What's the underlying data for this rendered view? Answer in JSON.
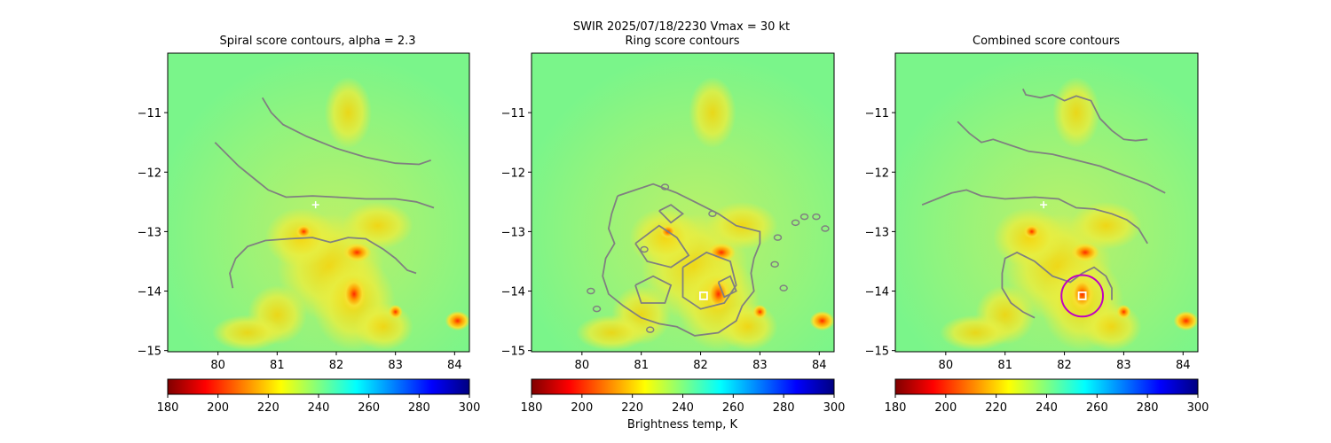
{
  "figure": {
    "suptitle": "SWIR  2025/07/18/2230    Vmax = 30 kt",
    "colorbar_label": "Brightness temp, K"
  },
  "chart_data": [
    {
      "type": "heatmap",
      "title": "Spiral score contours, alpha =  2.3",
      "xlim": [
        79.15,
        84.25
      ],
      "ylim": [
        -15.02,
        -10.0
      ],
      "xticks": [
        80,
        81,
        82,
        83,
        84
      ],
      "yticks": [
        -11,
        -12,
        -13,
        -14,
        -15
      ],
      "colorbar": {
        "cmap": "jet_r",
        "range": [
          180,
          300
        ],
        "ticks": [
          180,
          200,
          220,
          240,
          260,
          280,
          300
        ]
      },
      "markers": [
        {
          "kind": "plus",
          "color": "#ffffff",
          "x": 81.65,
          "y": -12.55
        }
      ],
      "contours": [
        [
          [
            80.75,
            -10.75
          ],
          [
            80.9,
            -11.0
          ],
          [
            81.1,
            -11.2
          ],
          [
            81.5,
            -11.4
          ],
          [
            82.0,
            -11.6
          ],
          [
            82.5,
            -11.75
          ],
          [
            83.0,
            -11.85
          ],
          [
            83.4,
            -11.87
          ],
          [
            83.6,
            -11.8
          ]
        ],
        [
          [
            79.95,
            -11.5
          ],
          [
            80.1,
            -11.65
          ],
          [
            80.35,
            -11.9
          ],
          [
            80.6,
            -12.1
          ],
          [
            80.85,
            -12.3
          ],
          [
            81.15,
            -12.42
          ],
          [
            81.6,
            -12.4
          ],
          [
            82.0,
            -12.42
          ],
          [
            82.5,
            -12.45
          ],
          [
            83.0,
            -12.45
          ],
          [
            83.35,
            -12.5
          ],
          [
            83.65,
            -12.6
          ]
        ],
        [
          [
            80.25,
            -13.95
          ],
          [
            80.2,
            -13.7
          ],
          [
            80.3,
            -13.45
          ],
          [
            80.5,
            -13.25
          ],
          [
            80.8,
            -13.15
          ],
          [
            81.2,
            -13.12
          ],
          [
            81.6,
            -13.1
          ],
          [
            81.9,
            -13.18
          ],
          [
            82.2,
            -13.1
          ],
          [
            82.5,
            -13.12
          ],
          [
            82.8,
            -13.3
          ],
          [
            83.0,
            -13.45
          ],
          [
            83.2,
            -13.65
          ],
          [
            83.35,
            -13.7
          ]
        ]
      ]
    },
    {
      "type": "heatmap",
      "title": "Ring score contours",
      "xlim": [
        79.15,
        84.25
      ],
      "ylim": [
        -15.02,
        -10.0
      ],
      "xticks": [
        80,
        81,
        82,
        83,
        84
      ],
      "yticks": [
        -11,
        -12,
        -13,
        -14,
        -15
      ],
      "colorbar": {
        "cmap": "jet_r",
        "range": [
          180,
          300
        ],
        "ticks": [
          180,
          200,
          220,
          240,
          260,
          280,
          300
        ]
      },
      "markers": [
        {
          "kind": "square",
          "color": "#ffffff",
          "x": 82.05,
          "y": -14.08
        }
      ],
      "contours": [
        [
          [
            80.6,
            -12.4
          ],
          [
            80.9,
            -12.3
          ],
          [
            81.2,
            -12.2
          ],
          [
            81.6,
            -12.35
          ],
          [
            81.9,
            -12.5
          ],
          [
            82.3,
            -12.7
          ],
          [
            82.6,
            -12.9
          ],
          [
            83.0,
            -13.0
          ],
          [
            83.0,
            -13.2
          ],
          [
            82.9,
            -13.45
          ],
          [
            82.85,
            -13.7
          ],
          [
            82.9,
            -14.0
          ],
          [
            82.7,
            -14.25
          ],
          [
            82.6,
            -14.5
          ],
          [
            82.3,
            -14.7
          ],
          [
            81.9,
            -14.75
          ],
          [
            81.6,
            -14.6
          ],
          [
            81.3,
            -14.55
          ],
          [
            81.0,
            -14.45
          ],
          [
            80.7,
            -14.25
          ],
          [
            80.45,
            -14.05
          ],
          [
            80.35,
            -13.75
          ],
          [
            80.4,
            -13.45
          ],
          [
            80.55,
            -13.2
          ],
          [
            80.45,
            -12.95
          ],
          [
            80.5,
            -12.7
          ],
          [
            80.6,
            -12.4
          ]
        ],
        [
          [
            80.9,
            -13.2
          ],
          [
            81.3,
            -12.9
          ],
          [
            81.6,
            -13.1
          ],
          [
            81.8,
            -13.4
          ],
          [
            81.5,
            -13.6
          ],
          [
            81.1,
            -13.5
          ],
          [
            80.9,
            -13.2
          ]
        ],
        [
          [
            81.7,
            -13.6
          ],
          [
            82.1,
            -13.35
          ],
          [
            82.5,
            -13.5
          ],
          [
            82.6,
            -13.9
          ],
          [
            82.4,
            -14.2
          ],
          [
            82.0,
            -14.3
          ],
          [
            81.7,
            -14.1
          ],
          [
            81.7,
            -13.6
          ]
        ],
        [
          [
            80.9,
            -13.9
          ],
          [
            81.2,
            -13.75
          ],
          [
            81.5,
            -13.9
          ],
          [
            81.4,
            -14.2
          ],
          [
            81.0,
            -14.2
          ],
          [
            80.9,
            -13.9
          ]
        ],
        [
          [
            81.3,
            -12.65
          ],
          [
            81.5,
            -12.55
          ],
          [
            81.7,
            -12.7
          ],
          [
            81.5,
            -12.85
          ],
          [
            81.3,
            -12.65
          ]
        ],
        [
          [
            82.3,
            -13.85
          ],
          [
            82.5,
            -13.75
          ],
          [
            82.6,
            -14.0
          ],
          [
            82.4,
            -14.1
          ],
          [
            82.3,
            -13.85
          ]
        ]
      ],
      "blobs": [
        [
          83.3,
          -13.1
        ],
        [
          83.6,
          -12.85
        ],
        [
          83.75,
          -12.75
        ],
        [
          83.95,
          -12.75
        ],
        [
          84.1,
          -12.95
        ],
        [
          83.4,
          -13.95
        ],
        [
          83.25,
          -13.55
        ],
        [
          80.15,
          -14.0
        ],
        [
          80.25,
          -14.3
        ],
        [
          81.4,
          -12.25
        ],
        [
          81.15,
          -14.65
        ],
        [
          82.2,
          -12.7
        ],
        [
          81.05,
          -13.3
        ]
      ]
    },
    {
      "type": "heatmap",
      "title": "Combined score contours",
      "xlim": [
        79.15,
        84.25
      ],
      "ylim": [
        -15.02,
        -10.0
      ],
      "xticks": [
        80,
        81,
        82,
        83,
        84
      ],
      "yticks": [
        -11,
        -12,
        -13,
        -14,
        -15
      ],
      "colorbar": {
        "cmap": "jet_r",
        "range": [
          180,
          300
        ],
        "ticks": [
          180,
          200,
          220,
          240,
          260,
          280,
          300
        ]
      },
      "markers": [
        {
          "kind": "plus",
          "color": "#ffffff",
          "x": 81.65,
          "y": -12.55
        },
        {
          "kind": "square",
          "color": "#ffffff",
          "x": 82.3,
          "y": -14.08
        },
        {
          "kind": "circle",
          "color": "#c000c0",
          "x": 82.3,
          "y": -14.08,
          "r": 0.35
        }
      ],
      "contours": [
        [
          [
            81.3,
            -10.6
          ],
          [
            81.35,
            -10.7
          ],
          [
            81.6,
            -10.75
          ],
          [
            81.8,
            -10.7
          ],
          [
            82.0,
            -10.8
          ],
          [
            82.2,
            -10.72
          ],
          [
            82.45,
            -10.8
          ],
          [
            82.6,
            -11.1
          ],
          [
            82.8,
            -11.3
          ],
          [
            83.0,
            -11.45
          ],
          [
            83.2,
            -11.47
          ],
          [
            83.4,
            -11.45
          ]
        ],
        [
          [
            80.2,
            -11.15
          ],
          [
            80.4,
            -11.35
          ],
          [
            80.6,
            -11.5
          ],
          [
            80.8,
            -11.45
          ],
          [
            81.1,
            -11.55
          ],
          [
            81.4,
            -11.65
          ],
          [
            81.8,
            -11.7
          ],
          [
            82.2,
            -11.8
          ],
          [
            82.6,
            -11.9
          ],
          [
            83.0,
            -12.05
          ],
          [
            83.4,
            -12.2
          ],
          [
            83.7,
            -12.35
          ]
        ],
        [
          [
            79.6,
            -12.55
          ],
          [
            79.85,
            -12.45
          ],
          [
            80.1,
            -12.35
          ],
          [
            80.35,
            -12.3
          ],
          [
            80.6,
            -12.4
          ],
          [
            81.0,
            -12.45
          ],
          [
            81.5,
            -12.42
          ],
          [
            81.9,
            -12.45
          ],
          [
            82.2,
            -12.6
          ],
          [
            82.5,
            -12.62
          ],
          [
            82.8,
            -12.7
          ],
          [
            83.05,
            -12.8
          ],
          [
            83.25,
            -12.95
          ],
          [
            83.4,
            -13.2
          ]
        ],
        [
          [
            81.5,
            -14.45
          ],
          [
            81.3,
            -14.35
          ],
          [
            81.1,
            -14.2
          ],
          [
            80.95,
            -13.95
          ],
          [
            80.95,
            -13.7
          ],
          [
            81.0,
            -13.45
          ],
          [
            81.2,
            -13.35
          ],
          [
            81.5,
            -13.5
          ],
          [
            81.8,
            -13.75
          ],
          [
            82.1,
            -13.85
          ],
          [
            82.3,
            -13.7
          ],
          [
            82.5,
            -13.6
          ],
          [
            82.7,
            -13.75
          ],
          [
            82.8,
            -13.95
          ],
          [
            82.8,
            -14.15
          ]
        ]
      ]
    }
  ]
}
